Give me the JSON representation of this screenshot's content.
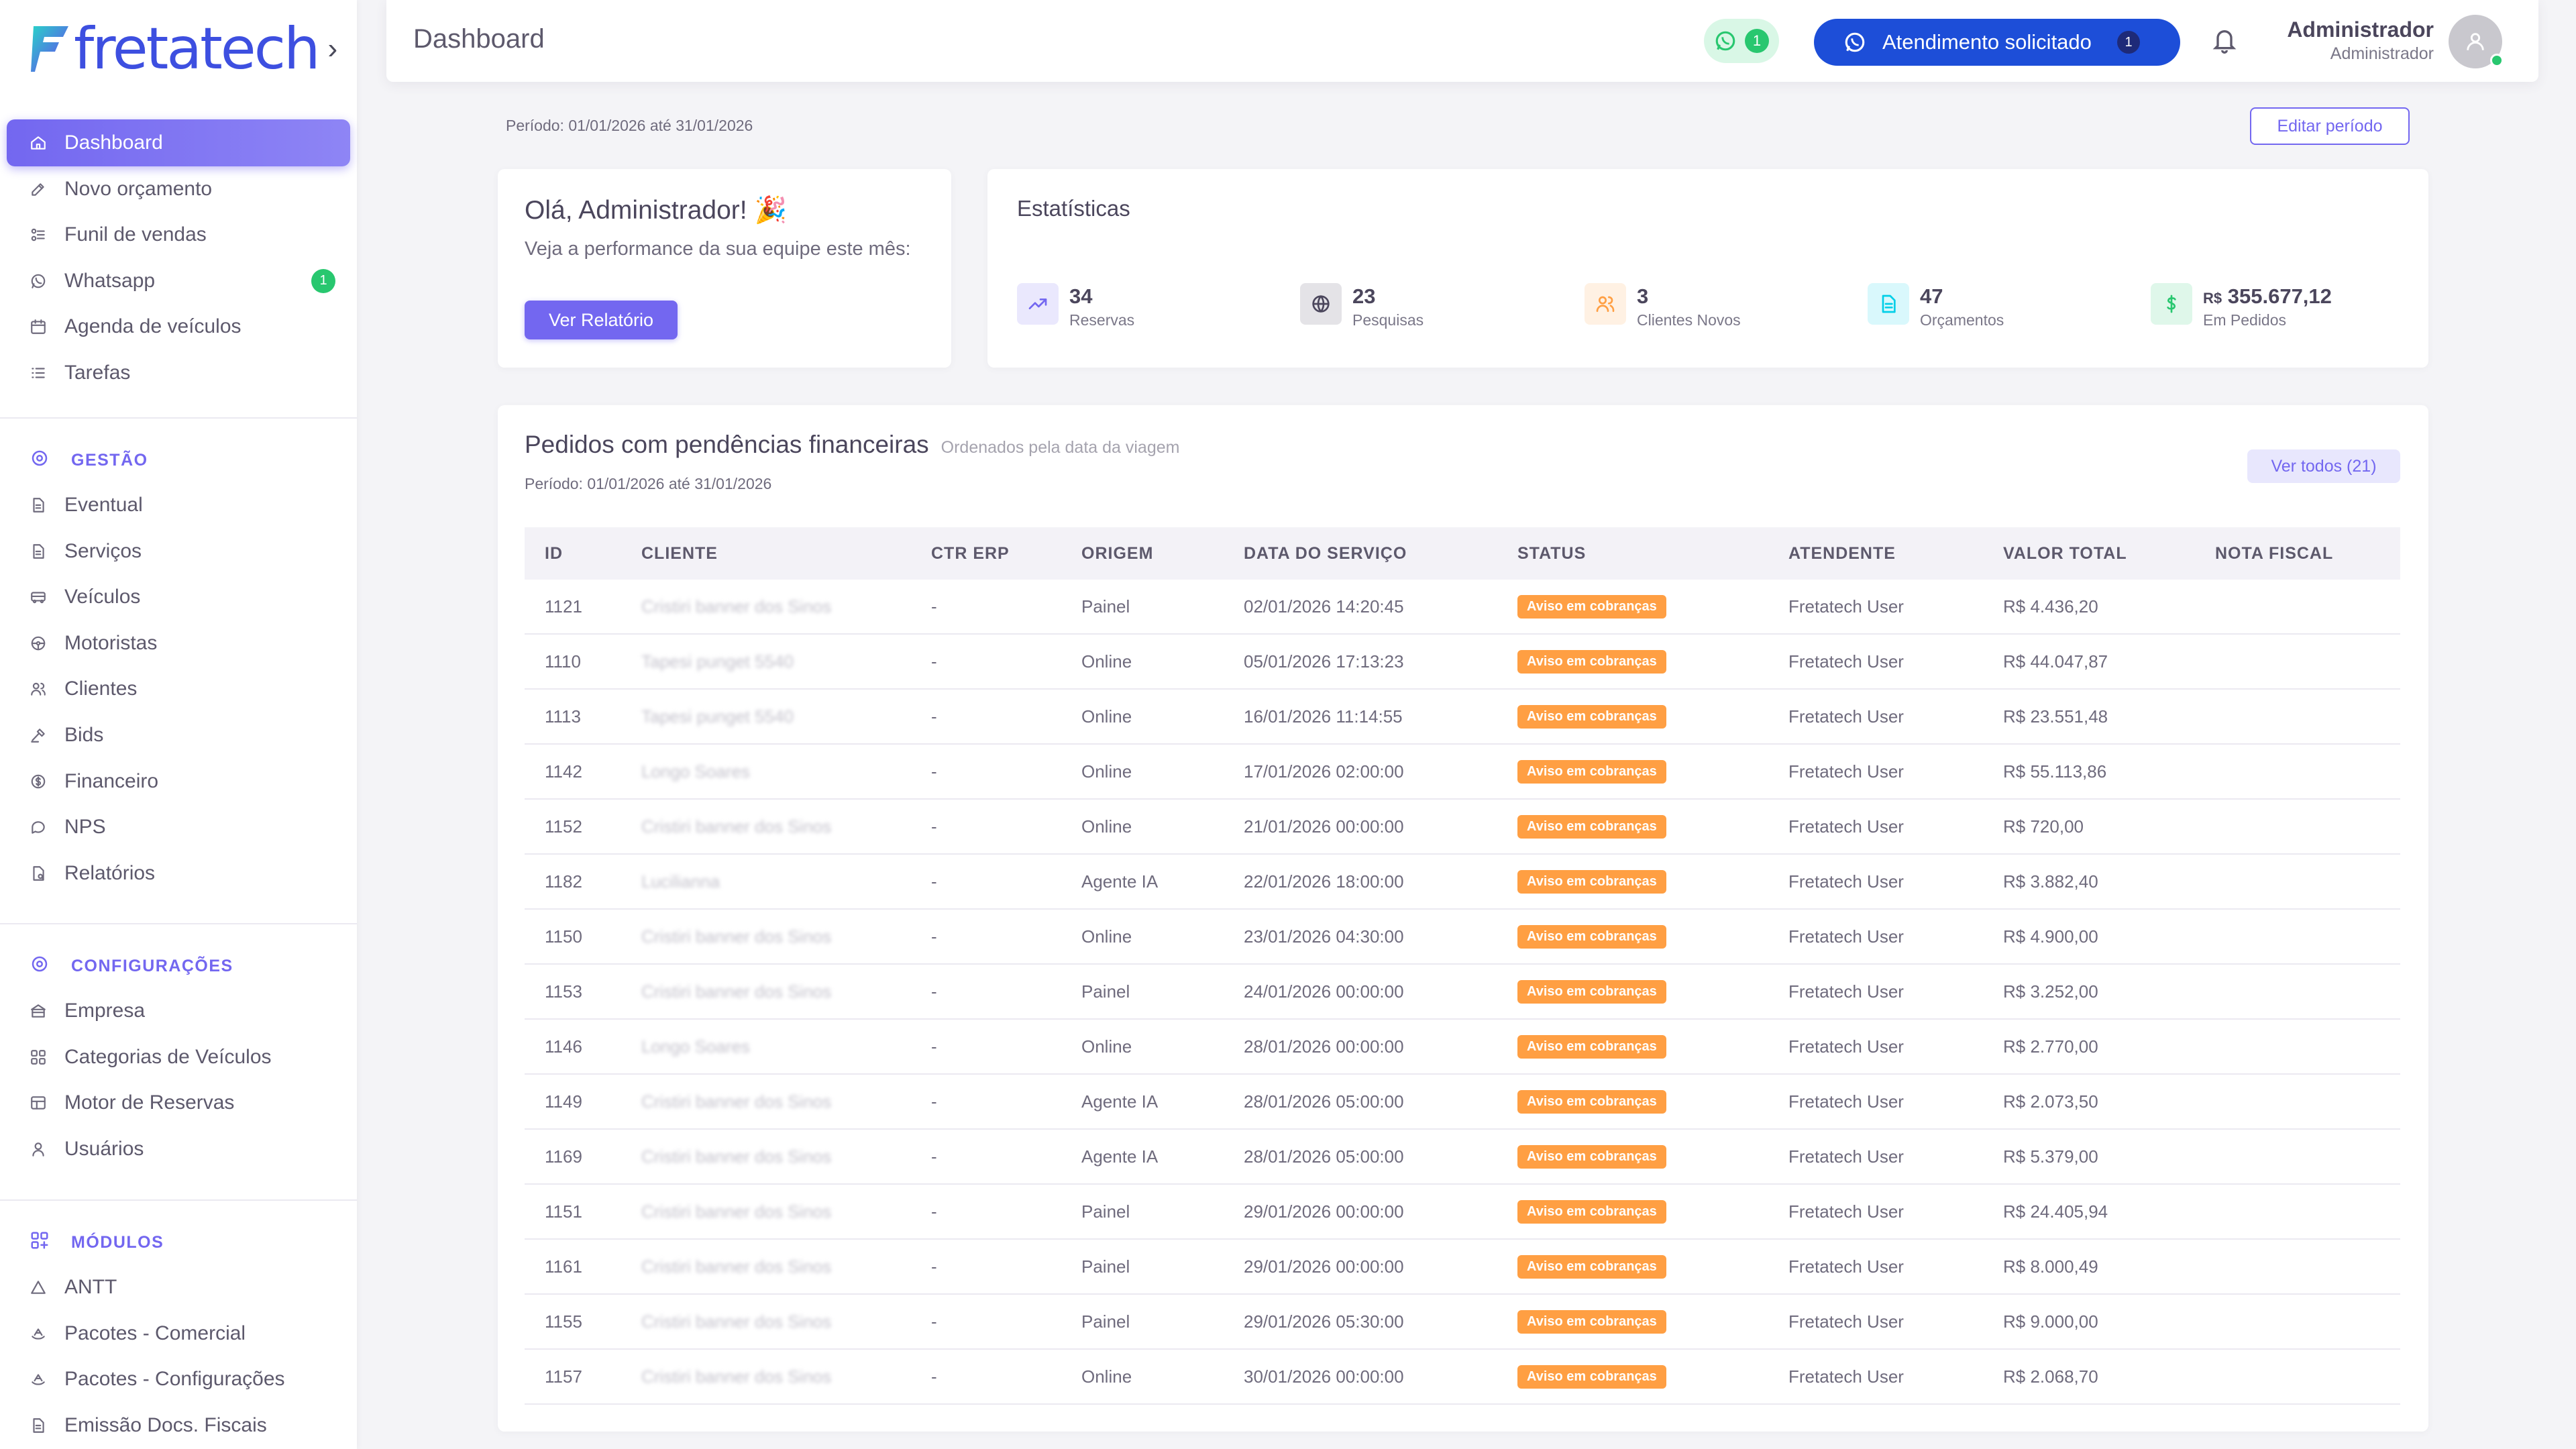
{
  "brand": {
    "logo_text": "fretatech"
  },
  "colors": {
    "primary": "#7367f0",
    "success": "#28c76f",
    "warning": "#ff9f43",
    "blue": "#1d4ed8"
  },
  "sidebar": {
    "main": [
      {
        "label": "Dashboard",
        "icon": "home-icon",
        "active": true
      },
      {
        "label": "Novo orçamento",
        "icon": "edit-icon"
      },
      {
        "label": "Funil de vendas",
        "icon": "funnel-icon"
      },
      {
        "label": "Whatsapp",
        "icon": "whatsapp-icon",
        "badge": "1"
      },
      {
        "label": "Agenda de veículos",
        "icon": "calendar-icon"
      },
      {
        "label": "Tarefas",
        "icon": "list-icon"
      }
    ],
    "sections": [
      {
        "title": "GESTÃO",
        "icon": "settings-icon",
        "items": [
          {
            "label": "Eventual",
            "icon": "file-icon"
          },
          {
            "label": "Serviços",
            "icon": "file-icon"
          },
          {
            "label": "Veículos",
            "icon": "bus-icon"
          },
          {
            "label": "Motoristas",
            "icon": "steering-icon"
          },
          {
            "label": "Clientes",
            "icon": "users-icon"
          },
          {
            "label": "Bids",
            "icon": "hammer-icon"
          },
          {
            "label": "Financeiro",
            "icon": "coin-icon"
          },
          {
            "label": "NPS",
            "icon": "chat-icon"
          },
          {
            "label": "Relatórios",
            "icon": "report-icon"
          }
        ]
      },
      {
        "title": "CONFIGURAÇÕES",
        "icon": "settings-icon",
        "items": [
          {
            "label": "Empresa",
            "icon": "building-icon"
          },
          {
            "label": "Categorias de Veículos",
            "icon": "grid-icon"
          },
          {
            "label": "Motor de Reservas",
            "icon": "table-icon"
          },
          {
            "label": "Usuários",
            "icon": "user-icon"
          }
        ]
      },
      {
        "title": "MÓDULOS",
        "icon": "modules-icon",
        "items": [
          {
            "label": "ANTT",
            "icon": "triangle-icon"
          },
          {
            "label": "Pacotes - Comercial",
            "icon": "package-icon"
          },
          {
            "label": "Pacotes - Configurações",
            "icon": "package-icon"
          },
          {
            "label": "Emissão Docs. Fiscais",
            "icon": "file-icon"
          }
        ]
      }
    ]
  },
  "header": {
    "title": "Dashboard",
    "whatsapp_count": "1",
    "attendance_label": "Atendimento solicitado",
    "attendance_count": "1",
    "user_name": "Administrador",
    "user_role": "Administrador"
  },
  "period": {
    "text": "Período: 01/01/2026 até 31/01/2026",
    "edit_label": "Editar período"
  },
  "welcome": {
    "title": "Olá, Administrador! 🎉",
    "subtitle": "Veja a performance da sua equipe este mês:",
    "button": "Ver Relatório"
  },
  "stats": {
    "title": "Estatísticas",
    "items": [
      {
        "value": "34",
        "label": "Reservas",
        "icon": "trend-up-icon",
        "color": "#7367f0"
      },
      {
        "value": "23",
        "label": "Pesquisas",
        "icon": "globe-icon",
        "color": "#4b465c"
      },
      {
        "value": "3",
        "label": "Clientes Novos",
        "icon": "users-icon",
        "color": "#ff9f43"
      },
      {
        "value": "47",
        "label": "Orçamentos",
        "icon": "document-icon",
        "color": "#00cfe8"
      },
      {
        "value_prefix": "R$",
        "value": "355.677,12",
        "label": "Em Pedidos",
        "icon": "dollar-icon",
        "color": "#28c76f"
      }
    ]
  },
  "orders": {
    "title": "Pedidos com pendências financeiras",
    "subtitle": "Ordenados pela data da viagem",
    "period": "Período: 01/01/2026 até 31/01/2026",
    "see_all": "Ver todos (21)",
    "columns": [
      "ID",
      "CLIENTE",
      "CTR ERP",
      "ORIGEM",
      "DATA DO SERVIÇO",
      "STATUS",
      "ATENDENTE",
      "VALOR TOTAL",
      "NOTA FISCAL"
    ],
    "rows": [
      {
        "id": "1121",
        "cliente": "Cristiri banner dos Sinos",
        "ctr": "-",
        "origem": "Painel",
        "data": "02/01/2026 14:20:45",
        "status": "Aviso em cobranças",
        "atendente": "Fretatech User",
        "valor": "R$ 4.436,20",
        "nf": ""
      },
      {
        "id": "1110",
        "cliente": "Tapesi punget 5540",
        "ctr": "-",
        "origem": "Online",
        "data": "05/01/2026 17:13:23",
        "status": "Aviso em cobranças",
        "atendente": "Fretatech User",
        "valor": "R$ 44.047,87",
        "nf": ""
      },
      {
        "id": "1113",
        "cliente": "Tapesi punget 5540",
        "ctr": "-",
        "origem": "Online",
        "data": "16/01/2026 11:14:55",
        "status": "Aviso em cobranças",
        "atendente": "Fretatech User",
        "valor": "R$ 23.551,48",
        "nf": ""
      },
      {
        "id": "1142",
        "cliente": "Longo Soares",
        "ctr": "-",
        "origem": "Online",
        "data": "17/01/2026 02:00:00",
        "status": "Aviso em cobranças",
        "atendente": "Fretatech User",
        "valor": "R$ 55.113,86",
        "nf": ""
      },
      {
        "id": "1152",
        "cliente": "Cristiri banner dos Sinos",
        "ctr": "-",
        "origem": "Online",
        "data": "21/01/2026 00:00:00",
        "status": "Aviso em cobranças",
        "atendente": "Fretatech User",
        "valor": "R$ 720,00",
        "nf": ""
      },
      {
        "id": "1182",
        "cliente": "Lucilianna",
        "ctr": "-",
        "origem": "Agente IA",
        "data": "22/01/2026 18:00:00",
        "status": "Aviso em cobranças",
        "atendente": "Fretatech User",
        "valor": "R$ 3.882,40",
        "nf": ""
      },
      {
        "id": "1150",
        "cliente": "Cristiri banner dos Sinos",
        "ctr": "-",
        "origem": "Online",
        "data": "23/01/2026 04:30:00",
        "status": "Aviso em cobranças",
        "atendente": "Fretatech User",
        "valor": "R$ 4.900,00",
        "nf": ""
      },
      {
        "id": "1153",
        "cliente": "Cristiri banner dos Sinos",
        "ctr": "-",
        "origem": "Painel",
        "data": "24/01/2026 00:00:00",
        "status": "Aviso em cobranças",
        "atendente": "Fretatech User",
        "valor": "R$ 3.252,00",
        "nf": ""
      },
      {
        "id": "1146",
        "cliente": "Longo Soares",
        "ctr": "-",
        "origem": "Online",
        "data": "28/01/2026 00:00:00",
        "status": "Aviso em cobranças",
        "atendente": "Fretatech User",
        "valor": "R$ 2.770,00",
        "nf": ""
      },
      {
        "id": "1149",
        "cliente": "Cristiri banner dos Sinos",
        "ctr": "-",
        "origem": "Agente IA",
        "data": "28/01/2026 05:00:00",
        "status": "Aviso em cobranças",
        "atendente": "Fretatech User",
        "valor": "R$ 2.073,50",
        "nf": ""
      },
      {
        "id": "1169",
        "cliente": "Cristiri banner dos Sinos",
        "ctr": "-",
        "origem": "Agente IA",
        "data": "28/01/2026 05:00:00",
        "status": "Aviso em cobranças",
        "atendente": "Fretatech User",
        "valor": "R$ 5.379,00",
        "nf": ""
      },
      {
        "id": "1151",
        "cliente": "Cristiri banner dos Sinos",
        "ctr": "-",
        "origem": "Painel",
        "data": "29/01/2026 00:00:00",
        "status": "Aviso em cobranças",
        "atendente": "Fretatech User",
        "valor": "R$ 24.405,94",
        "nf": ""
      },
      {
        "id": "1161",
        "cliente": "Cristiri banner dos Sinos",
        "ctr": "-",
        "origem": "Painel",
        "data": "29/01/2026 00:00:00",
        "status": "Aviso em cobranças",
        "atendente": "Fretatech User",
        "valor": "R$ 8.000,49",
        "nf": ""
      },
      {
        "id": "1155",
        "cliente": "Cristiri banner dos Sinos",
        "ctr": "-",
        "origem": "Painel",
        "data": "29/01/2026 05:30:00",
        "status": "Aviso em cobranças",
        "atendente": "Fretatech User",
        "valor": "R$ 9.000,00",
        "nf": ""
      },
      {
        "id": "1157",
        "cliente": "Cristiri banner dos Sinos",
        "ctr": "-",
        "origem": "Online",
        "data": "30/01/2026 00:00:00",
        "status": "Aviso em cobranças",
        "atendente": "Fretatech User",
        "valor": "R$ 2.068,70",
        "nf": ""
      }
    ]
  }
}
